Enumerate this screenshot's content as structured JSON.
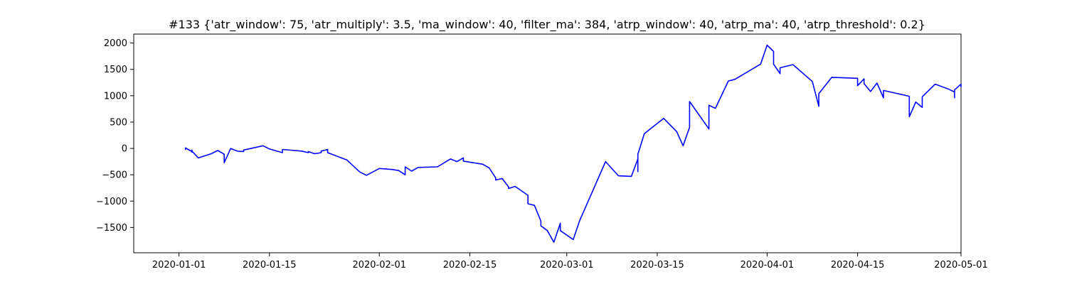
{
  "chart_data": {
    "type": "line",
    "title": "#133 {'atr_window': 75, 'atr_multiply': 3.5, 'ma_window': 40, 'filter_ma': 384, 'atrp_window': 40, 'atrp_ma': 40, 'atrp_threshold': 0.2}",
    "xlabel": "",
    "ylabel": "",
    "grid": false,
    "legend": "none",
    "color": "#0000ff",
    "xlim": [
      "2019-12-25",
      "2020-05-01"
    ],
    "ylim": [
      -1980,
      2170
    ],
    "x_ticks": [
      {
        "date": "2020-01-01",
        "label": "2020-01-01"
      },
      {
        "date": "2020-01-15",
        "label": "2020-01-15"
      },
      {
        "date": "2020-02-01",
        "label": "2020-02-01"
      },
      {
        "date": "2020-02-15",
        "label": "2020-02-15"
      },
      {
        "date": "2020-03-01",
        "label": "2020-03-01"
      },
      {
        "date": "2020-03-15",
        "label": "2020-03-15"
      },
      {
        "date": "2020-04-01",
        "label": "2020-04-01"
      },
      {
        "date": "2020-04-15",
        "label": "2020-04-15"
      },
      {
        "date": "2020-05-01",
        "label": "2020-05-01"
      }
    ],
    "y_ticks": [
      {
        "value": 2000,
        "label": "2000"
      },
      {
        "value": 1500,
        "label": "1500"
      },
      {
        "value": 1000,
        "label": "1000"
      },
      {
        "value": 500,
        "label": "500"
      },
      {
        "value": 0,
        "label": "0"
      },
      {
        "value": -500,
        "label": "−500"
      },
      {
        "value": -1000,
        "label": "−1000"
      },
      {
        "value": -1500,
        "label": "−1500"
      }
    ],
    "series": [
      {
        "points": [
          [
            "2020-01-02",
            0
          ],
          [
            "2020-01-02",
            -20
          ],
          [
            "2020-01-02",
            10
          ],
          [
            "2020-01-03",
            -60
          ],
          [
            "2020-01-03",
            -30
          ],
          [
            "2020-01-03",
            -70
          ],
          [
            "2020-01-03",
            -50
          ],
          [
            "2020-01-04",
            -180
          ],
          [
            "2020-01-06",
            -100
          ],
          [
            "2020-01-07",
            -40
          ],
          [
            "2020-01-08",
            -110
          ],
          [
            "2020-01-08",
            -270
          ],
          [
            "2020-01-09",
            0
          ],
          [
            "2020-01-10",
            -50
          ],
          [
            "2020-01-11",
            -60
          ],
          [
            "2020-01-11",
            -30
          ],
          [
            "2020-01-14",
            50
          ],
          [
            "2020-01-15",
            -10
          ],
          [
            "2020-01-17",
            -80
          ],
          [
            "2020-01-17",
            -20
          ],
          [
            "2020-01-20",
            -50
          ],
          [
            "2020-01-21",
            -80
          ],
          [
            "2020-01-21",
            -60
          ],
          [
            "2020-01-22",
            -100
          ],
          [
            "2020-01-23",
            -80
          ],
          [
            "2020-01-23",
            -50
          ],
          [
            "2020-01-24",
            -20
          ],
          [
            "2020-01-24",
            -80
          ],
          [
            "2020-01-27",
            -220
          ],
          [
            "2020-01-29",
            -450
          ],
          [
            "2020-01-30",
            -510
          ],
          [
            "2020-02-01",
            -380
          ],
          [
            "2020-02-03",
            -400
          ],
          [
            "2020-02-04",
            -420
          ],
          [
            "2020-02-05",
            -500
          ],
          [
            "2020-02-05",
            -350
          ],
          [
            "2020-02-06",
            -430
          ],
          [
            "2020-02-07",
            -360
          ],
          [
            "2020-02-10",
            -350
          ],
          [
            "2020-02-12",
            -200
          ],
          [
            "2020-02-13",
            -250
          ],
          [
            "2020-02-14",
            -180
          ],
          [
            "2020-02-14",
            -240
          ],
          [
            "2020-02-17",
            -300
          ],
          [
            "2020-02-18",
            -370
          ],
          [
            "2020-02-19",
            -560
          ],
          [
            "2020-02-19",
            -600
          ],
          [
            "2020-02-20",
            -570
          ],
          [
            "2020-02-21",
            -730
          ],
          [
            "2020-02-21",
            -760
          ],
          [
            "2020-02-22",
            -720
          ],
          [
            "2020-02-24",
            -890
          ],
          [
            "2020-02-24",
            -1050
          ],
          [
            "2020-02-25",
            -1080
          ],
          [
            "2020-02-26",
            -1380
          ],
          [
            "2020-02-26",
            -1470
          ],
          [
            "2020-02-27",
            -1560
          ],
          [
            "2020-02-28",
            -1780
          ],
          [
            "2020-02-29",
            -1420
          ],
          [
            "2020-02-29",
            -1560
          ],
          [
            "2020-03-02",
            -1730
          ],
          [
            "2020-03-03",
            -1370
          ],
          [
            "2020-03-05",
            -810
          ],
          [
            "2020-03-07",
            -250
          ],
          [
            "2020-03-09",
            -520
          ],
          [
            "2020-03-11",
            -530
          ],
          [
            "2020-03-12",
            -200
          ],
          [
            "2020-03-12",
            -440
          ],
          [
            "2020-03-12",
            -110
          ],
          [
            "2020-03-13",
            280
          ],
          [
            "2020-03-16",
            570
          ],
          [
            "2020-03-18",
            320
          ],
          [
            "2020-03-19",
            50
          ],
          [
            "2020-03-20",
            400
          ],
          [
            "2020-03-20",
            890
          ],
          [
            "2020-03-23",
            370
          ],
          [
            "2020-03-23",
            820
          ],
          [
            "2020-03-24",
            760
          ],
          [
            "2020-03-26",
            1280
          ],
          [
            "2020-03-27",
            1310
          ],
          [
            "2020-03-31",
            1600
          ],
          [
            "2020-04-01",
            1960
          ],
          [
            "2020-04-02",
            1840
          ],
          [
            "2020-04-02",
            1600
          ],
          [
            "2020-04-03",
            1420
          ],
          [
            "2020-04-03",
            1530
          ],
          [
            "2020-04-05",
            1590
          ],
          [
            "2020-04-08",
            1270
          ],
          [
            "2020-04-09",
            800
          ],
          [
            "2020-04-09",
            1040
          ],
          [
            "2020-04-11",
            1350
          ],
          [
            "2020-04-15",
            1330
          ],
          [
            "2020-04-15",
            1190
          ],
          [
            "2020-04-16",
            1320
          ],
          [
            "2020-04-16",
            1230
          ],
          [
            "2020-04-17",
            1080
          ],
          [
            "2020-04-18",
            1240
          ],
          [
            "2020-04-19",
            960
          ],
          [
            "2020-04-19",
            1100
          ],
          [
            "2020-04-23",
            990
          ],
          [
            "2020-04-23",
            600
          ],
          [
            "2020-04-24",
            880
          ],
          [
            "2020-04-25",
            780
          ],
          [
            "2020-04-25",
            980
          ],
          [
            "2020-04-27",
            1220
          ],
          [
            "2020-04-29",
            1130
          ],
          [
            "2020-04-30",
            1070
          ],
          [
            "2020-04-30",
            960
          ],
          [
            "2020-04-30",
            1110
          ],
          [
            "2020-05-01",
            1220
          ],
          [
            "2020-05-01",
            1170
          ]
        ]
      }
    ]
  }
}
